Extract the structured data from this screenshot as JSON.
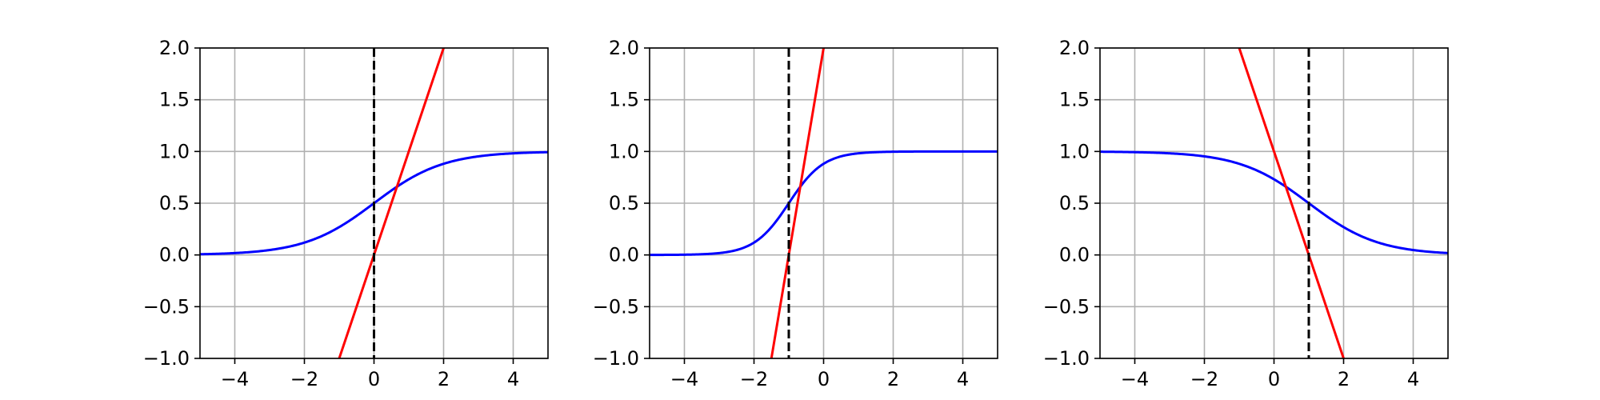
{
  "colors": {
    "grid": "#b0b0b0",
    "frame": "#000000",
    "tangent": "#ff0000",
    "sigmoid": "#0000ff",
    "marker": "#000000"
  },
  "chart_data": [
    {
      "type": "line",
      "xlim": [
        -5,
        5
      ],
      "ylim": [
        -1,
        2
      ],
      "grid": true,
      "xticks": [
        -4,
        -2,
        0,
        2,
        4
      ],
      "xtick_labels": [
        "−4",
        "−2",
        "0",
        "2",
        "4"
      ],
      "yticks": [
        -1.0,
        -0.5,
        0.0,
        0.5,
        1.0,
        1.5,
        2.0
      ],
      "ytick_labels": [
        "−1.0",
        "−0.5",
        "0.0",
        "0.5",
        "1.0",
        "1.5",
        "2.0"
      ],
      "series": [
        {
          "kind": "sigmoid",
          "a": 1,
          "b": 0
        },
        {
          "kind": "line",
          "points": [
            [
              -1,
              -1
            ],
            [
              2,
              2
            ]
          ]
        },
        {
          "kind": "vline",
          "x": 0
        }
      ]
    },
    {
      "type": "line",
      "xlim": [
        -5,
        5
      ],
      "ylim": [
        -1,
        2
      ],
      "grid": true,
      "xticks": [
        -4,
        -2,
        0,
        2,
        4
      ],
      "xtick_labels": [
        "−4",
        "−2",
        "0",
        "2",
        "4"
      ],
      "yticks": [
        -1.0,
        -0.5,
        0.0,
        0.5,
        1.0,
        1.5,
        2.0
      ],
      "ytick_labels": [
        "−1.0",
        "−0.5",
        "0.0",
        "0.5",
        "1.0",
        "1.5",
        "2.0"
      ],
      "series": [
        {
          "kind": "sigmoid",
          "a": 2,
          "b": 2
        },
        {
          "kind": "line",
          "points": [
            [
              -1.5,
              -1
            ],
            [
              0,
              2
            ]
          ]
        },
        {
          "kind": "vline",
          "x": -1
        }
      ]
    },
    {
      "type": "line",
      "xlim": [
        -5,
        5
      ],
      "ylim": [
        -1,
        2
      ],
      "grid": true,
      "xticks": [
        -4,
        -2,
        0,
        2,
        4
      ],
      "xtick_labels": [
        "−4",
        "−2",
        "0",
        "2",
        "4"
      ],
      "yticks": [
        -1.0,
        -0.5,
        0.0,
        0.5,
        1.0,
        1.5,
        2.0
      ],
      "ytick_labels": [
        "−1.0",
        "−0.5",
        "0.0",
        "0.5",
        "1.0",
        "1.5",
        "2.0"
      ],
      "series": [
        {
          "kind": "sigmoid",
          "a": -1,
          "b": 1
        },
        {
          "kind": "line",
          "points": [
            [
              -1,
              2
            ],
            [
              2,
              -1
            ]
          ]
        },
        {
          "kind": "vline",
          "x": 1
        }
      ]
    }
  ]
}
